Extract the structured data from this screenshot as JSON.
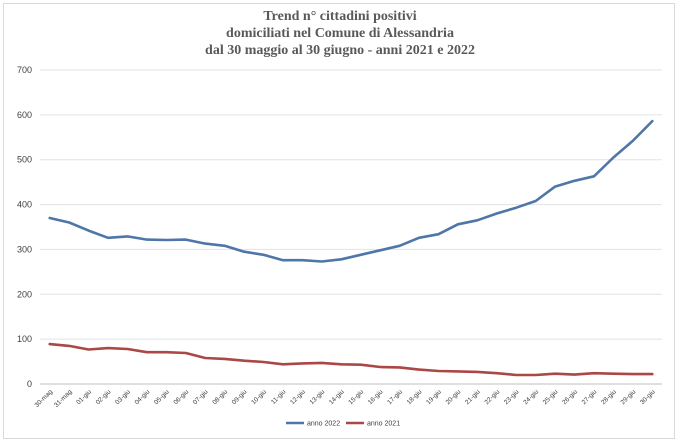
{
  "chart_data": {
    "type": "line",
    "title_lines": [
      "Trend n° cittadini positivi",
      "domiciliati nel Comune di Alessandria",
      "dal 30 maggio al 30 giugno - anni 2021 e 2022"
    ],
    "xlabel": "",
    "ylabel": "",
    "ylim": [
      0,
      700
    ],
    "yticks": [
      0,
      100,
      200,
      300,
      400,
      500,
      600,
      700
    ],
    "grid": true,
    "legend": "bottom",
    "categories": [
      "30-mag",
      "31-mag",
      "01-giu",
      "02-giu",
      "03-giu",
      "04-giu",
      "05-giu",
      "06-giu",
      "07-giu",
      "08-giu",
      "09-giu",
      "10-giu",
      "11-giu",
      "12-giu",
      "13-giu",
      "14-giu",
      "15-giu",
      "16-giu",
      "17-giu",
      "18-giu",
      "19-giu",
      "20-giu",
      "21-giu",
      "22-giu",
      "23-giu",
      "24-giu",
      "25-giu",
      "26-giu",
      "27-giu",
      "28-giu",
      "29-giu",
      "30-giu"
    ],
    "series": [
      {
        "name": "anno 2022",
        "color": "#4f76a8",
        "values": [
          370,
          360,
          342,
          326,
          329,
          322,
          321,
          322,
          313,
          308,
          295,
          288,
          276,
          276,
          273,
          278,
          288,
          298,
          308,
          326,
          334,
          356,
          365,
          380,
          393,
          408,
          440,
          453,
          463,
          505,
          542,
          586
        ]
      },
      {
        "name": "anno 2021",
        "color": "#a94845",
        "values": [
          89,
          85,
          77,
          80,
          78,
          71,
          71,
          69,
          58,
          56,
          52,
          49,
          44,
          46,
          47,
          44,
          43,
          38,
          37,
          32,
          29,
          28,
          27,
          24,
          20,
          20,
          23,
          21,
          24,
          23,
          22,
          22
        ]
      }
    ]
  }
}
